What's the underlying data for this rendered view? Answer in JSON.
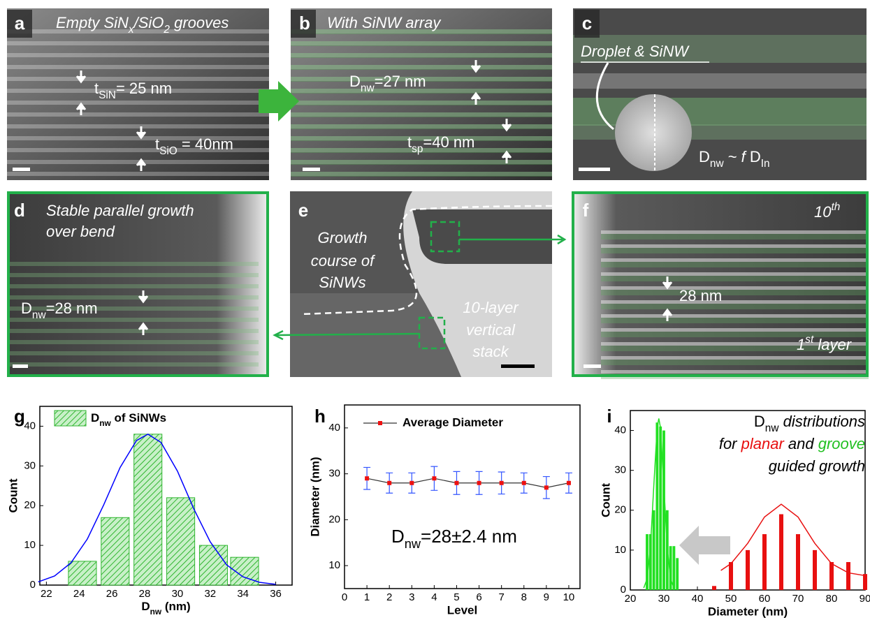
{
  "panels": [
    {
      "label": "a",
      "texts": [
        [
          {
            "text": "Empty SiN"
          },
          {
            "sub": "x"
          },
          {
            "text": "/SiO"
          },
          {
            "sub": "2"
          },
          {
            "text": " grooves"
          }
        ],
        [
          {
            "text": "t"
          },
          {
            "sub": "SiN"
          },
          {
            "text": "= 25 nm"
          }
        ],
        [
          {
            "text": "t"
          },
          {
            "sub": "SiO"
          },
          {
            "text": " = 40nm"
          }
        ]
      ]
    },
    {
      "label": "b",
      "texts": [
        "With SiNW array",
        [
          {
            "text": "D"
          },
          {
            "sub": "nw"
          },
          {
            "text": "=27 nm"
          }
        ],
        [
          {
            "text": "t"
          },
          {
            "sub": "sp"
          },
          {
            "text": "=40 nm"
          }
        ]
      ]
    },
    {
      "label": "c",
      "texts": [
        "Droplet & SiNW",
        [
          {
            "text": "D"
          },
          {
            "sub": "nw"
          },
          {
            "text": " ~ "
          },
          {
            "em": "f"
          },
          {
            "text": " D"
          },
          {
            "sub": "In"
          }
        ]
      ]
    },
    {
      "label": "d",
      "texts": [
        "Stable parallel growth",
        "over bend",
        [
          {
            "text": "D"
          },
          {
            "sub": "nw"
          },
          {
            "text": "=28 nm"
          }
        ]
      ]
    },
    {
      "label": "e",
      "texts": [
        "Growth",
        "course of",
        "SiNWs",
        "10-layer",
        "vertical",
        "stack"
      ]
    },
    {
      "label": "f",
      "texts": [
        [
          {
            "text": "10"
          },
          {
            "sup": "th"
          }
        ],
        "28 nm",
        [
          {
            "text": "1"
          },
          {
            "sup": "st"
          },
          {
            "text": "  layer"
          }
        ]
      ]
    }
  ],
  "chart_data": [
    {
      "type": "bar",
      "panel_label": "g",
      "x": [
        24.2,
        26.2,
        28.2,
        30.2,
        32.2,
        34.1
      ],
      "series": [
        {
          "name": [
            {
              "text": "D"
            },
            {
              "sub": "nw"
            },
            {
              "text": " of SiNWs"
            }
          ],
          "color": "#2fb52f",
          "values": [
            6,
            17,
            38,
            22,
            10,
            7
          ]
        }
      ],
      "fits": [
        {
          "color": "#0000ff",
          "x": [
            21.5,
            22.5,
            23.5,
            24.5,
            25.5,
            26.5,
            27.5,
            28.2,
            29,
            30,
            31,
            32,
            33,
            34,
            35,
            36
          ],
          "values": [
            0.8,
            2.3,
            5.6,
            11.6,
            20.2,
            29.6,
            36.4,
            38,
            35.9,
            28.7,
            19.2,
            10.9,
            5.1,
            2.1,
            0.7,
            0.2
          ]
        }
      ],
      "xlim": [
        21.6,
        37
      ],
      "xticks": [
        22,
        24,
        26,
        28,
        30,
        32,
        34,
        36
      ],
      "ylim": [
        0,
        45
      ],
      "yticks": [
        0,
        10,
        20,
        30,
        40
      ],
      "xlabel": [
        {
          "text": "D"
        },
        {
          "sub": "nw"
        },
        {
          "text": " (nm)"
        }
      ],
      "ylabel": "Count"
    },
    {
      "type": "line",
      "panel_label": "h",
      "x": [
        1,
        2,
        3,
        4,
        5,
        6,
        7,
        8,
        9,
        10
      ],
      "series": [
        {
          "name": "Average Diameter",
          "color": "#333333",
          "marker_color": "#ee1111",
          "error_color": "#3355ff",
          "values": [
            29,
            28,
            28,
            29,
            28,
            28,
            28,
            28,
            27,
            28
          ],
          "errors": [
            2.4,
            2.2,
            2.2,
            2.6,
            2.5,
            2.5,
            2.4,
            2.2,
            2.4,
            2.2
          ]
        }
      ],
      "annotation": [
        {
          "text": "D"
        },
        {
          "sub": "nw"
        },
        {
          "text": "=28±2.4 nm"
        }
      ],
      "xlim": [
        0,
        10.5
      ],
      "xticks": [
        0,
        1,
        2,
        3,
        4,
        5,
        6,
        7,
        8,
        9,
        10
      ],
      "ylim": [
        5,
        45
      ],
      "yticks": [
        10,
        20,
        30,
        40
      ],
      "xlabel": "Level",
      "ylabel": "Diameter (nm)"
    },
    {
      "type": "bar",
      "panel_label": "i",
      "series": [
        {
          "color": "#22e022",
          "x": [
            25,
            26,
            27,
            28,
            29,
            30,
            31,
            32,
            33,
            34
          ],
          "values": [
            14,
            14,
            20,
            42,
            41,
            40,
            20,
            11,
            11,
            8
          ]
        },
        {
          "color": "#e81010",
          "x": [
            45,
            50,
            55,
            60,
            65,
            70,
            75,
            80,
            85,
            90
          ],
          "values": [
            1,
            7,
            10,
            14,
            19,
            14,
            10,
            7,
            7,
            4
          ]
        }
      ],
      "fits": [
        {
          "color": "#22e022",
          "x": [
            24,
            25,
            26,
            27,
            28,
            28.5,
            29,
            30,
            31,
            32,
            33
          ],
          "values": [
            0.5,
            2.8,
            10.7,
            26.1,
            40.7,
            43,
            40.7,
            26.1,
            10.7,
            2.8,
            0.5
          ]
        },
        {
          "color": "#e81010",
          "x": [
            47,
            50,
            55,
            60,
            65,
            70,
            75,
            80,
            85,
            90
          ],
          "values": [
            4.9,
            6.6,
            11.7,
            18.3,
            21.5,
            18.3,
            11.7,
            6.6,
            4.3,
            3.6
          ]
        }
      ],
      "title": [
        [
          {
            "text": "D"
          },
          {
            "sub": "nw"
          },
          {
            "em": " distributions"
          }
        ],
        [
          {
            "em": "for "
          },
          {
            "em": "planar",
            "color": "#e81010"
          },
          {
            "em": " and "
          },
          {
            "em": "groove",
            "color": "#22c022"
          }
        ],
        [
          {
            "em": "guided growth"
          }
        ]
      ],
      "xlim": [
        20,
        90
      ],
      "xticks": [
        20,
        30,
        40,
        50,
        60,
        70,
        80,
        90
      ],
      "ylim": [
        0,
        45
      ],
      "yticks": [
        0,
        10,
        20,
        30,
        40
      ],
      "xlabel": "Diameter (nm)",
      "ylabel": "Count"
    }
  ]
}
